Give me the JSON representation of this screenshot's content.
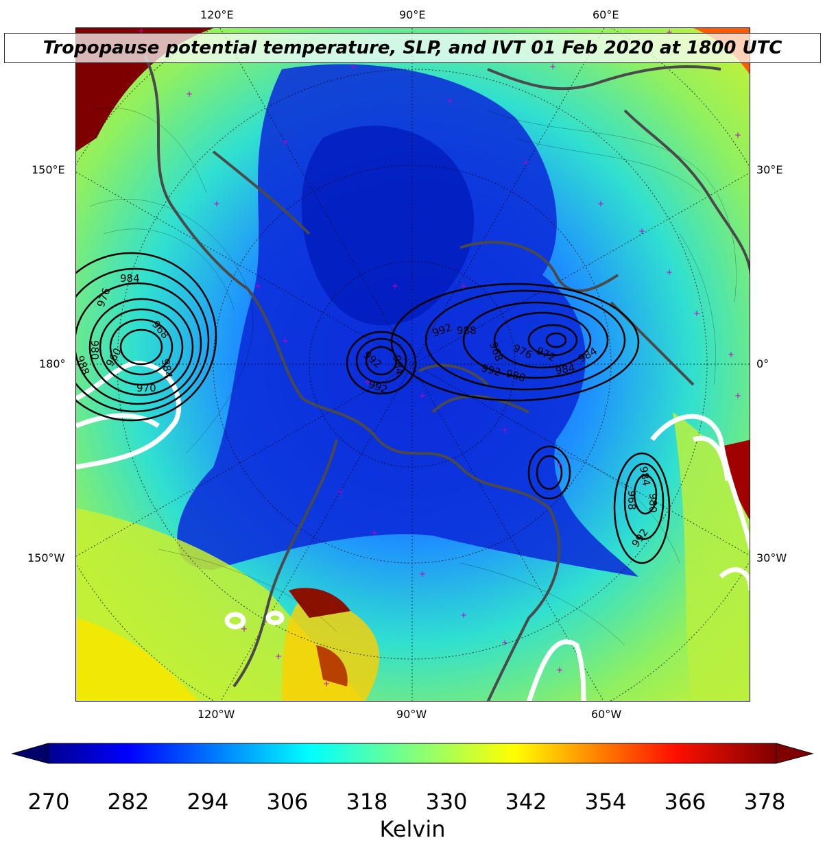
{
  "title": "Tropopause potential temperature, SLP, and IVT 01 Feb 2020 at 1800 UTC",
  "axes": {
    "top_ticks": [
      "120°E",
      "90°E",
      "60°E"
    ],
    "bottom_ticks": [
      "120°W",
      "90°W",
      "60°W"
    ],
    "left_ticks": [
      "150°E",
      "180°",
      "150°W"
    ],
    "right_ticks": [
      "30°E",
      "0°",
      "30°W"
    ]
  },
  "slp_contour_labels": {
    "pacific_low": [
      "984",
      "976",
      "968",
      "980",
      "988",
      "970",
      "960",
      "984"
    ],
    "atlantic_low": [
      "992",
      "988",
      "976",
      "972",
      "984",
      "992",
      "988",
      "984",
      "968"
    ],
    "arctic_low": [
      "992",
      "984",
      "992"
    ],
    "north_atlantic_low": [
      "984",
      "968",
      "980",
      "992"
    ]
  },
  "colorbar": {
    "ticks": [
      "270",
      "282",
      "294",
      "306",
      "318",
      "330",
      "342",
      "354",
      "366",
      "378"
    ],
    "label": "Kelvin",
    "range": [
      270,
      378
    ],
    "colormap": "jet",
    "extend": "both"
  },
  "colors": {
    "slp_contour": "#000000",
    "ivt_contour": "#ffffff",
    "coastline": "#4a4a4a",
    "station_marker": "#c000c0"
  }
}
